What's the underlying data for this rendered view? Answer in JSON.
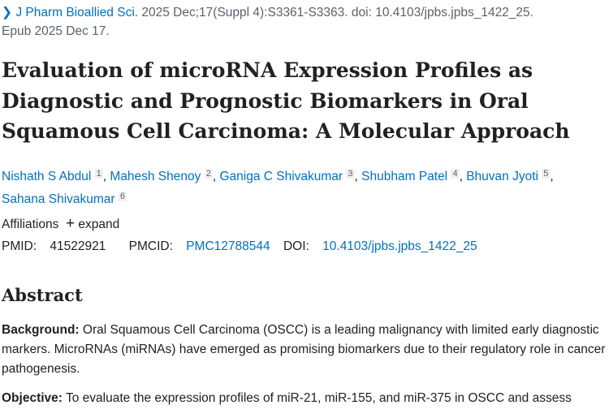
{
  "citation": {
    "journal": "J Pharm Bioallied Sci.",
    "details": " 2025 Dec;17(Suppl 4):S3361-S3363. doi: 10.4103/jpbs.jpbs_1422_25.",
    "epub": "Epub 2025 Dec 17."
  },
  "title": "Evaluation of microRNA Expression Profiles as Diagnostic and Prognostic Biomarkers in Oral Squamous Cell Carcinoma: A Molecular Approach",
  "authors": [
    {
      "name": "Nishath S Abdul",
      "aff": "1"
    },
    {
      "name": "Mahesh Shenoy",
      "aff": "2"
    },
    {
      "name": "Ganiga C Shivakumar",
      "aff": "3"
    },
    {
      "name": "Shubham Patel",
      "aff": "4"
    },
    {
      "name": "Bhuvan Jyoti",
      "aff": "5"
    },
    {
      "name": "Sahana Shivakumar",
      "aff": "6"
    }
  ],
  "affiliations": {
    "label": "Affiliations",
    "expand": "expand"
  },
  "ids": {
    "pmid_label": "PMID:",
    "pmid": "41522921",
    "pmcid_label": "PMCID:",
    "pmcid": "PMC12788544",
    "doi_label": "DOI:",
    "doi": "10.4103/jpbs.jpbs_1422_25"
  },
  "abstract": {
    "heading": "Abstract",
    "sections": [
      {
        "label": "Background:",
        "text": " Oral Squamous Cell Carcinoma (OSCC) is a leading malignancy with limited early diagnostic markers. MicroRNAs (miRNAs) have emerged as promising biomarkers due to their regulatory role in cancer pathogenesis."
      },
      {
        "label": "Objective:",
        "text": " To evaluate the expression profiles of miR-21, miR-155, and miR-375 in OSCC and assess"
      }
    ]
  },
  "colors": {
    "link": "#0071bc",
    "text": "#212121",
    "muted": "#5b616b"
  }
}
